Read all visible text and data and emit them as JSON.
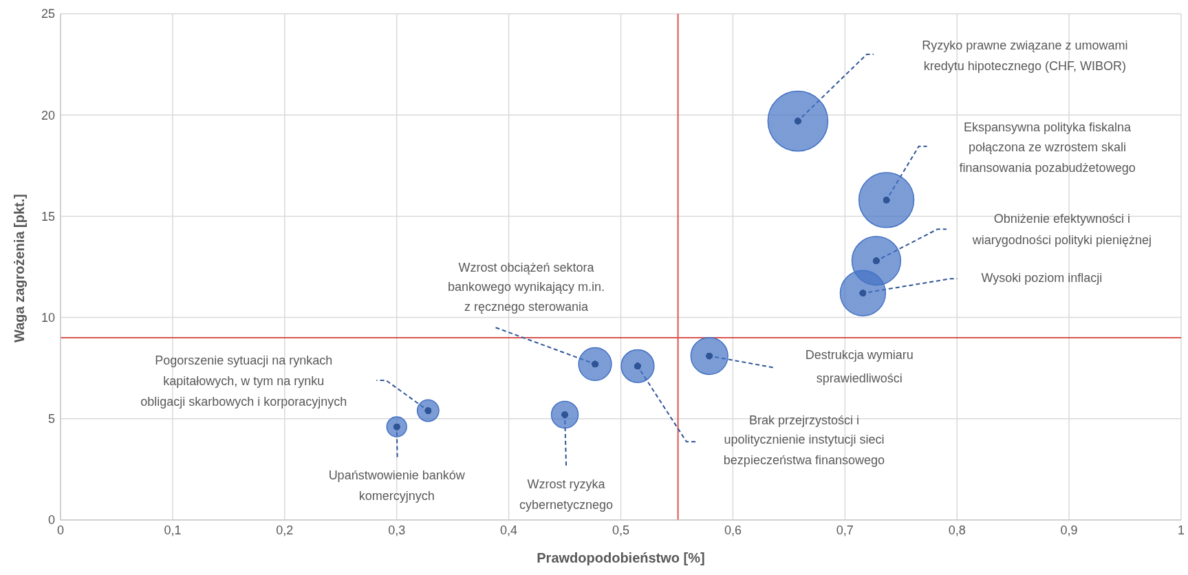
{
  "chart_data": {
    "type": "bubble",
    "xlabel": "Prawdopodobieństwo [%]",
    "ylabel": "Waga zagrożenia [pkt.]",
    "x": [
      0.658,
      0.737,
      0.728,
      0.716,
      0.579,
      0.477,
      0.515,
      0.45,
      0.328,
      0.3
    ],
    "values": [
      19.7,
      15.8,
      12.8,
      11.2,
      8.1,
      7.7,
      7.6,
      5.2,
      5.4,
      4.6
    ],
    "sizes": [
      1,
      0.84,
      0.66,
      0.57,
      0.38,
      0.3,
      0.3,
      0.2,
      0.13,
      0.11
    ],
    "color": "#4472c4",
    "xlim": [
      0,
      1
    ],
    "xticks": [
      {
        "value": 0,
        "label": "0"
      },
      {
        "value": 0.1,
        "label": "0,1"
      },
      {
        "value": 0.2,
        "label": "0,2"
      },
      {
        "value": 0.3,
        "label": "0,3"
      },
      {
        "value": 0.4,
        "label": "0,4"
      },
      {
        "value": 0.5,
        "label": "0,5"
      },
      {
        "value": 0.6,
        "label": "0,6"
      },
      {
        "value": 0.7,
        "label": "0,7"
      },
      {
        "value": 0.8,
        "label": "0,8"
      },
      {
        "value": 0.9,
        "label": "0,9"
      },
      {
        "value": 1,
        "label": "1"
      }
    ],
    "ylim": [
      0,
      25
    ],
    "yticks": [
      0,
      5,
      10,
      15,
      20,
      25
    ],
    "grid": true,
    "ref_lines": [
      {
        "axis": "x",
        "value": 0.551,
        "color": "#d9534f"
      },
      {
        "axis": "y",
        "value": 9,
        "color": "#d9534f"
      }
    ],
    "annotations": [
      "Ryzyko prawne związane z umowami\nkredytu hipotecznego (CHF, WIBOR)",
      "Ekspansywna polityka fiskalna\npołączona ze wzrostem skali\nfinansowania pozabudżetowego",
      "Obniżenie efektywności i\nwiarygodności polityki pieniężnej",
      "Wysoki poziom inflacji",
      "Destrukcja wymiaru\nsprawiedliwości",
      "Wzrost obciążeń sektora\nbankowego wynikający m.in.\nz ręcznego sterowania",
      "Brak przejrzystości i\nupolitycznienie instytucji sieci\nbezpieczeństwa finansowego",
      "Wzrost ryzyka\ncybernetycznego",
      "Pogorszenie sytuacji na rynkach\nkapitałowych, w tym na rynku\nobligacji skarbowych i korporacyjnych",
      "Upaństwowienie banków\nkomercyjnych"
    ]
  }
}
